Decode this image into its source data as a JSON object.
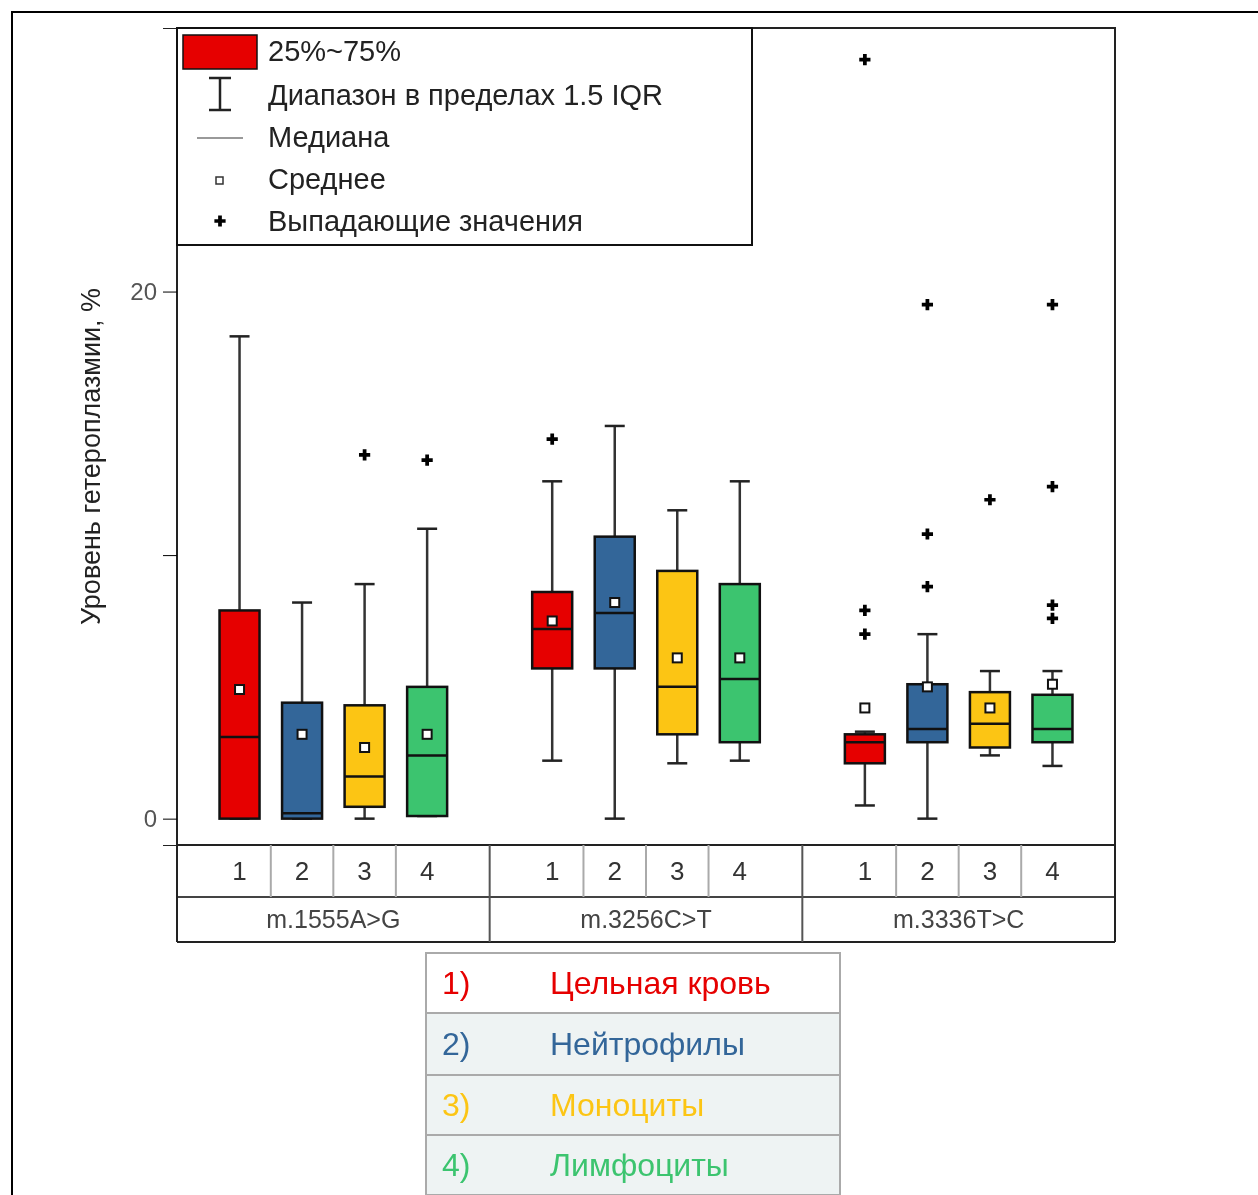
{
  "chart_data": {
    "type": "box",
    "ylabel": "Уровень гетероплазмии, %",
    "categories": [
      "1",
      "2",
      "3",
      "4",
      "1",
      "2",
      "3",
      "4",
      "1",
      "2",
      "3",
      "4"
    ],
    "colors": [
      "#e60000",
      "#336699",
      "#fcc514",
      "#3cc46f",
      "#e60000",
      "#336699",
      "#fcc514",
      "#3cc46f",
      "#e60000",
      "#336699",
      "#fcc514",
      "#3cc46f"
    ],
    "boxes": [
      {
        "low": 0,
        "q1": 0,
        "median": 3.1,
        "q3": 7.9,
        "high": 18.3,
        "mean": 4.9
      },
      {
        "low": 0,
        "q1": 0,
        "median": 0.2,
        "q3": 4.4,
        "high": 8.2,
        "mean": 3.2
      },
      {
        "low": 0,
        "q1": 0.45,
        "median": 1.6,
        "q3": 4.3,
        "high": 8.9,
        "mean": 2.7,
        "outliers": [
          13.8
        ]
      },
      {
        "low": 0.1,
        "q1": 0.1,
        "median": 2.4,
        "q3": 5.0,
        "high": 11.0,
        "mean": 3.2,
        "outliers": [
          13.6
        ]
      },
      {
        "low": 2.2,
        "q1": 5.7,
        "median": 7.2,
        "q3": 8.6,
        "high": 12.8,
        "mean": 7.5,
        "outliers": [
          14.4
        ]
      },
      {
        "low": 0,
        "q1": 5.7,
        "median": 7.8,
        "q3": 10.7,
        "high": 14.9,
        "mean": 8.2
      },
      {
        "low": 2.1,
        "q1": 3.2,
        "median": 5.0,
        "q3": 9.4,
        "high": 11.7,
        "mean": 6.1
      },
      {
        "low": 2.2,
        "q1": 2.9,
        "median": 5.3,
        "q3": 8.9,
        "high": 12.8,
        "mean": 6.1
      },
      {
        "low": 0.5,
        "q1": 2.1,
        "median": 2.9,
        "q3": 3.2,
        "high": 3.3,
        "mean": 4.2,
        "outliers": [
          7.0,
          7.9,
          28.8
        ]
      },
      {
        "low": 0,
        "q1": 2.9,
        "median": 3.4,
        "q3": 5.1,
        "high": 7.0,
        "mean": 5.0,
        "outliers": [
          8.8,
          10.8,
          19.5
        ]
      },
      {
        "low": 2.4,
        "q1": 2.7,
        "median": 3.6,
        "q3": 4.8,
        "high": 5.6,
        "mean": 4.2,
        "outliers": [
          12.1
        ]
      },
      {
        "low": 2.0,
        "q1": 2.9,
        "median": 3.4,
        "q3": 4.7,
        "high": 5.6,
        "mean": 5.1,
        "outliers": [
          7.6,
          8.1,
          12.6,
          19.5
        ]
      }
    ],
    "ylim": [
      -1,
      30
    ],
    "yticks": [
      0,
      {
        "value": 10,
        "label": null
      },
      20
    ],
    "annotations": [
      "m.1555A>G",
      "m.3256C>T",
      "m.3336T>C",
      "25%~75%",
      "Диапазон в пределах  1.5 IQR",
      "Медиана",
      "Среднее",
      "Выпадающие значения",
      "1)",
      "Цельная кровь",
      "2)",
      "Нейтрофилы",
      "3)",
      "Моноциты",
      "4)",
      "Лимфоциты"
    ]
  }
}
